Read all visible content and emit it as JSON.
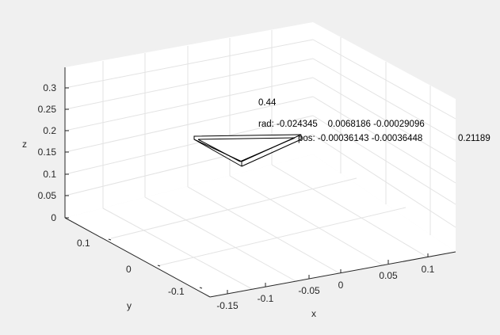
{
  "chart_data": {
    "type": "3d-line",
    "xlabel": "x",
    "ylabel": "y",
    "zlabel": "z",
    "xlim": [
      -0.15,
      0.12
    ],
    "ylim": [
      -0.15,
      0.15
    ],
    "zlim": [
      0,
      0.35
    ],
    "x_ticks": [
      "-0.15",
      "-0.1",
      "-0.05",
      "0",
      "0.05",
      "0.1"
    ],
    "y_ticks": [
      "0.1",
      "0",
      "-0.1"
    ],
    "z_ticks": [
      "0",
      "0.05",
      "0.1",
      "0.15",
      "0.2",
      "0.25",
      "0.3"
    ],
    "grid": true,
    "annotations": {
      "value": "0.44",
      "rad": "rad: -0.024345    0.0068186 -0.00029096",
      "pos": "pos: -0.00036143 -0.00036448",
      "pos_z": "0.21189"
    }
  }
}
